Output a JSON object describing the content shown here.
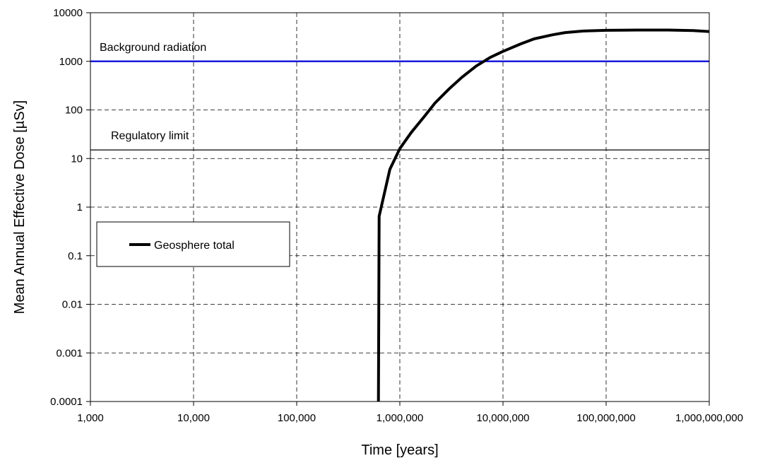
{
  "chart_data": {
    "type": "line",
    "title": "",
    "xlabel": "Time [years]",
    "ylabel": "Mean Annual Effective Dose [µSv]",
    "x_scale": "log",
    "y_scale": "log",
    "xlim": [
      1000,
      1000000000
    ],
    "ylim": [
      0.0001,
      10000
    ],
    "grid": true,
    "x_ticks": [
      1000,
      10000,
      100000,
      1000000,
      10000000,
      100000000,
      1000000000
    ],
    "x_tick_labels": [
      "1,000",
      "10,000",
      "100,000",
      "1,000,000",
      "10,000,000",
      "100,000,000",
      "1,000,000,000"
    ],
    "y_ticks": [
      0.0001,
      0.001,
      0.01,
      0.1,
      1,
      10,
      100,
      1000,
      10000
    ],
    "y_tick_labels": [
      "0.0001",
      "0.001",
      "0.01",
      "0.1",
      "1",
      "10",
      "100",
      "1000",
      "10000"
    ],
    "reference_lines": [
      {
        "label": "Background radiation",
        "y": 1000,
        "color": "#1a1adc"
      },
      {
        "label": "Regulatory limit",
        "y": 15,
        "color": "#000000"
      }
    ],
    "legend_position": "left",
    "series": [
      {
        "name": "Geosphere total",
        "color": "#000000",
        "x": [
          620000,
          630000,
          800000,
          1000000,
          1300000,
          1700000,
          2200000,
          3000000,
          4000000,
          5500000,
          7500000,
          10000000,
          15000000,
          20000000,
          30000000,
          40000000,
          60000000,
          100000000,
          200000000,
          400000000,
          700000000,
          1000000000
        ],
        "y": [
          0.0001,
          0.65,
          6,
          16,
          35,
          70,
          140,
          270,
          470,
          800,
          1200,
          1600,
          2300,
          2900,
          3500,
          3900,
          4200,
          4350,
          4400,
          4400,
          4300,
          4100
        ]
      }
    ]
  }
}
